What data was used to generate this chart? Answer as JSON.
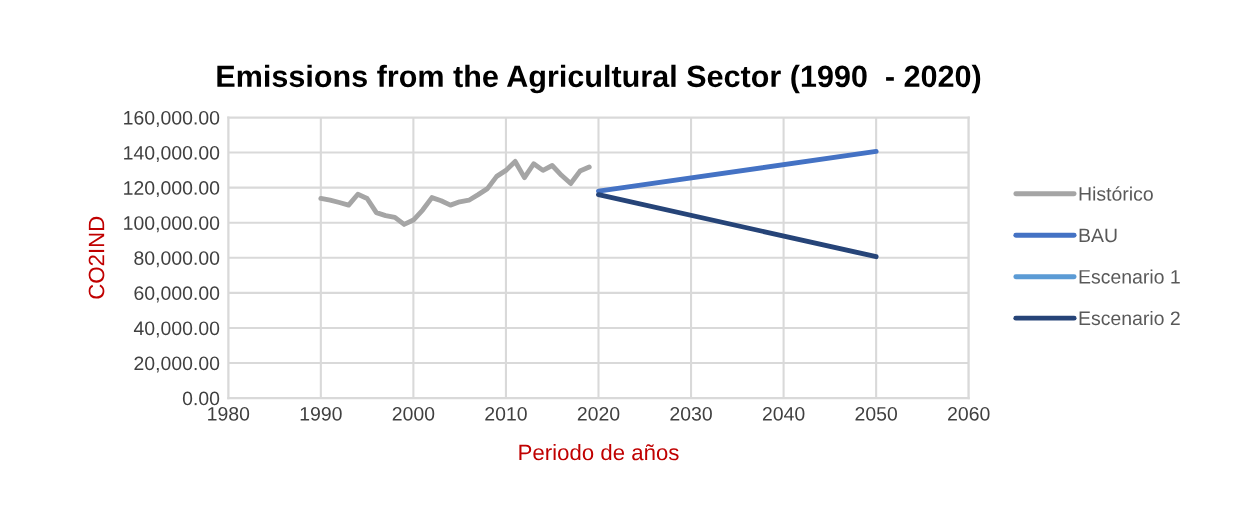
{
  "chart_data": {
    "type": "line",
    "title": "Emissions from the Agricultural Sector (1990  - 2020)",
    "xlabel": "Periodo de años",
    "ylabel": "CO2IND",
    "xlim": [
      1980,
      2060
    ],
    "xticks": [
      1980,
      1990,
      2000,
      2010,
      2020,
      2030,
      2040,
      2050,
      2060
    ],
    "ylim": [
      0,
      160000
    ],
    "yticks": [
      {
        "value": 0,
        "label": "0.00"
      },
      {
        "value": 20000,
        "label": "20,000.00"
      },
      {
        "value": 40000,
        "label": "40,000.00"
      },
      {
        "value": 60000,
        "label": "60,000.00"
      },
      {
        "value": 80000,
        "label": "80,000.00"
      },
      {
        "value": 100000,
        "label": "100,000.00"
      },
      {
        "value": 120000,
        "label": "120,000.00"
      },
      {
        "value": 140000,
        "label": "140,000.00"
      },
      {
        "value": 160000,
        "label": "160,000.00"
      }
    ],
    "grid": true,
    "legend": "right",
    "marker": "none",
    "line_style": "solid",
    "series": [
      {
        "name": "Histórico",
        "color": "#a5a5a5",
        "x": [
          1990,
          1991,
          1992,
          1993,
          1994,
          1995,
          1996,
          1997,
          1998,
          1999,
          2000,
          2001,
          2002,
          2003,
          2004,
          2005,
          2006,
          2007,
          2008,
          2009,
          2010,
          2011,
          2012,
          2013,
          2014,
          2015,
          2016,
          2017,
          2018,
          2019
        ],
        "values": [
          113800,
          112800,
          111500,
          110000,
          116200,
          113800,
          105700,
          104000,
          103000,
          99000,
          101500,
          107200,
          114300,
          112500,
          110000,
          111900,
          112800,
          116000,
          119400,
          126400,
          129800,
          134900,
          125700,
          133600,
          129800,
          132600,
          127000,
          122300,
          129400,
          131700
        ]
      },
      {
        "name": "BAU",
        "color": "#4472c4",
        "x": [
          2020,
          2050
        ],
        "values": [
          118000,
          140600
        ]
      },
      {
        "name": "Escenario 1",
        "color": "#5b9bd5"
      },
      {
        "name": "Escenario 2",
        "color": "#264478",
        "x": [
          2020,
          2050
        ],
        "values": [
          116000,
          80600
        ]
      }
    ]
  }
}
